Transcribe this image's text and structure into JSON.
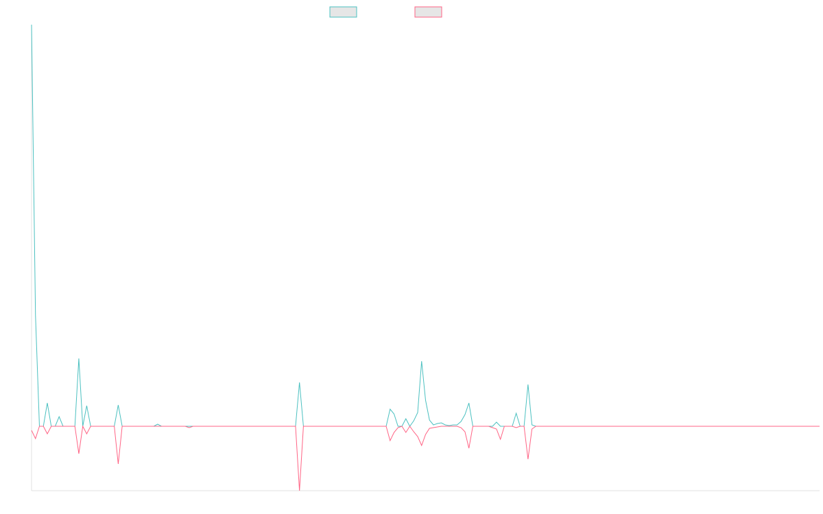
{
  "chart_data": {
    "type": "line",
    "ylim": [
      -94,
      586
    ],
    "series": [
      {
        "color": "#4bc0c0",
        "values": [
          586,
          162,
          0,
          0,
          34,
          0,
          0,
          14,
          0,
          0,
          0,
          0,
          99,
          0,
          30,
          0,
          0,
          0,
          0,
          0,
          0,
          0,
          31,
          0,
          0,
          0,
          0,
          0,
          0,
          0,
          0,
          0,
          3,
          0,
          0,
          0,
          0,
          0,
          0,
          0,
          0,
          0,
          0,
          0,
          0,
          0,
          0,
          0,
          0,
          0,
          0,
          0,
          0,
          0,
          0,
          0,
          0,
          0,
          0,
          0,
          0,
          0,
          0,
          0,
          0,
          0,
          0,
          0,
          64,
          0,
          0,
          0,
          0,
          0,
          0,
          0,
          0,
          0,
          0,
          0,
          0,
          0,
          0,
          0,
          0,
          0,
          0,
          0,
          0,
          0,
          0,
          25,
          18,
          0,
          0,
          11,
          0,
          8,
          20,
          95,
          38,
          9,
          2,
          4,
          5,
          2,
          1,
          2,
          2,
          7,
          17,
          34,
          0,
          0,
          0,
          0,
          0,
          0,
          6,
          0,
          0,
          0,
          0,
          19,
          0,
          0,
          61,
          2,
          0,
          0,
          0,
          0,
          0,
          0,
          0,
          0,
          0,
          0,
          0,
          0,
          0,
          0,
          0,
          0,
          0,
          0,
          0,
          0,
          0,
          0,
          0,
          0,
          0,
          0,
          0,
          0,
          0,
          0,
          0,
          0,
          0,
          0,
          0,
          0,
          0,
          0,
          0,
          0,
          0,
          0,
          0,
          0,
          0,
          0,
          0,
          0,
          0,
          0,
          0,
          0,
          0,
          0,
          0,
          0,
          0,
          0,
          0,
          0,
          0,
          0,
          0,
          0,
          0,
          0,
          0,
          0,
          0,
          0,
          0,
          0,
          0
        ]
      },
      {
        "color": "#ff6384",
        "values": [
          -6,
          -18,
          0,
          0,
          -11,
          0,
          0,
          0,
          0,
          0,
          0,
          0,
          -40,
          0,
          -11,
          0,
          0,
          0,
          0,
          0,
          0,
          0,
          -55,
          0,
          0,
          0,
          0,
          0,
          0,
          0,
          0,
          0,
          0,
          0,
          0,
          0,
          0,
          0,
          0,
          0,
          -2,
          0,
          0,
          0,
          0,
          0,
          0,
          0,
          0,
          0,
          0,
          0,
          0,
          0,
          0,
          0,
          0,
          0,
          0,
          0,
          0,
          0,
          0,
          0,
          0,
          0,
          0,
          0,
          -94,
          0,
          0,
          0,
          0,
          0,
          0,
          0,
          0,
          0,
          0,
          0,
          0,
          0,
          0,
          0,
          0,
          0,
          0,
          0,
          0,
          0,
          0,
          -21,
          -9,
          -2,
          0,
          -9,
          0,
          -8,
          -15,
          -28,
          -12,
          -3,
          -2,
          -1,
          0,
          0,
          0,
          0,
          0,
          -2,
          -8,
          -32,
          0,
          0,
          0,
          0,
          0,
          -2,
          -4,
          -19,
          0,
          0,
          0,
          -2,
          0,
          0,
          -48,
          -4,
          0,
          0,
          0,
          0,
          0,
          0,
          0,
          0,
          0,
          0,
          0,
          0,
          0,
          0,
          0,
          0,
          0,
          0,
          0,
          0,
          0,
          0,
          0,
          0,
          0,
          0,
          0,
          0,
          0,
          0,
          0,
          0,
          0,
          0,
          0,
          0,
          0,
          0,
          0,
          0,
          0,
          0,
          0,
          0,
          0,
          0,
          0,
          0,
          0,
          0,
          0,
          0,
          0,
          0,
          0,
          0,
          0,
          0,
          0,
          0,
          0,
          0,
          0,
          0,
          0,
          0,
          0,
          0,
          0,
          0,
          0,
          0,
          0
        ]
      }
    ]
  }
}
